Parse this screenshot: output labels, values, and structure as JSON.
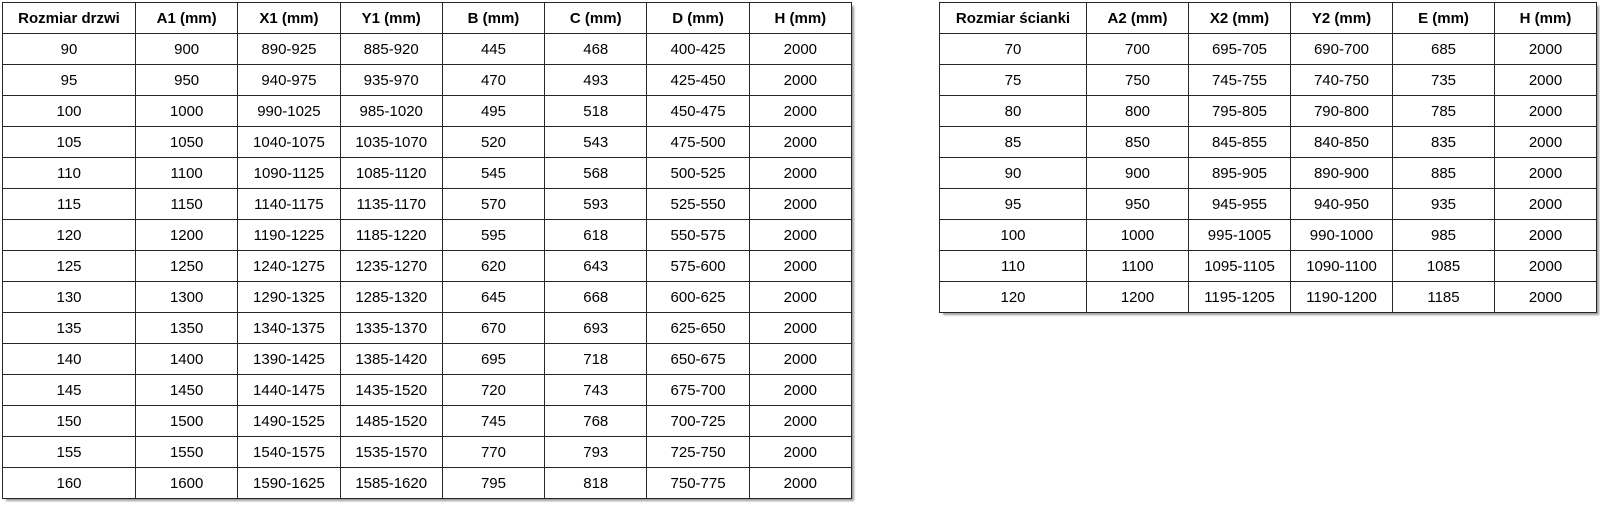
{
  "tables": {
    "doors": {
      "headers": [
        "Rozmiar drzwi",
        "A1 (mm)",
        "X1 (mm)",
        "Y1 (mm)",
        "B (mm)",
        "C (mm)",
        "D (mm)",
        "H (mm)"
      ],
      "rows": [
        [
          "90",
          "900",
          "890-925",
          "885-920",
          "445",
          "468",
          "400-425",
          "2000"
        ],
        [
          "95",
          "950",
          "940-975",
          "935-970",
          "470",
          "493",
          "425-450",
          "2000"
        ],
        [
          "100",
          "1000",
          "990-1025",
          "985-1020",
          "495",
          "518",
          "450-475",
          "2000"
        ],
        [
          "105",
          "1050",
          "1040-1075",
          "1035-1070",
          "520",
          "543",
          "475-500",
          "2000"
        ],
        [
          "110",
          "1100",
          "1090-1125",
          "1085-1120",
          "545",
          "568",
          "500-525",
          "2000"
        ],
        [
          "115",
          "1150",
          "1140-1175",
          "1135-1170",
          "570",
          "593",
          "525-550",
          "2000"
        ],
        [
          "120",
          "1200",
          "1190-1225",
          "1185-1220",
          "595",
          "618",
          "550-575",
          "2000"
        ],
        [
          "125",
          "1250",
          "1240-1275",
          "1235-1270",
          "620",
          "643",
          "575-600",
          "2000"
        ],
        [
          "130",
          "1300",
          "1290-1325",
          "1285-1320",
          "645",
          "668",
          "600-625",
          "2000"
        ],
        [
          "135",
          "1350",
          "1340-1375",
          "1335-1370",
          "670",
          "693",
          "625-650",
          "2000"
        ],
        [
          "140",
          "1400",
          "1390-1425",
          "1385-1420",
          "695",
          "718",
          "650-675",
          "2000"
        ],
        [
          "145",
          "1450",
          "1440-1475",
          "1435-1520",
          "720",
          "743",
          "675-700",
          "2000"
        ],
        [
          "150",
          "1500",
          "1490-1525",
          "1485-1520",
          "745",
          "768",
          "700-725",
          "2000"
        ],
        [
          "155",
          "1550",
          "1540-1575",
          "1535-1570",
          "770",
          "793",
          "725-750",
          "2000"
        ],
        [
          "160",
          "1600",
          "1590-1625",
          "1585-1620",
          "795",
          "818",
          "750-775",
          "2000"
        ]
      ]
    },
    "walls": {
      "headers": [
        "Rozmiar ścianki",
        "A2 (mm)",
        "X2 (mm)",
        "Y2 (mm)",
        "E (mm)",
        "H (mm)"
      ],
      "rows": [
        [
          "70",
          "700",
          "695-705",
          "690-700",
          "685",
          "2000"
        ],
        [
          "75",
          "750",
          "745-755",
          "740-750",
          "735",
          "2000"
        ],
        [
          "80",
          "800",
          "795-805",
          "790-800",
          "785",
          "2000"
        ],
        [
          "85",
          "850",
          "845-855",
          "840-850",
          "835",
          "2000"
        ],
        [
          "90",
          "900",
          "895-905",
          "890-900",
          "885",
          "2000"
        ],
        [
          "95",
          "950",
          "945-955",
          "940-950",
          "935",
          "2000"
        ],
        [
          "100",
          "1000",
          "995-1005",
          "990-1000",
          "985",
          "2000"
        ],
        [
          "110",
          "1100",
          "1095-1105",
          "1090-1100",
          "1085",
          "2000"
        ],
        [
          "120",
          "1200",
          "1195-1205",
          "1190-1200",
          "1185",
          "2000"
        ]
      ]
    }
  },
  "colors": {
    "background": "#ffffff",
    "border": "#262626",
    "text": "#000000"
  }
}
